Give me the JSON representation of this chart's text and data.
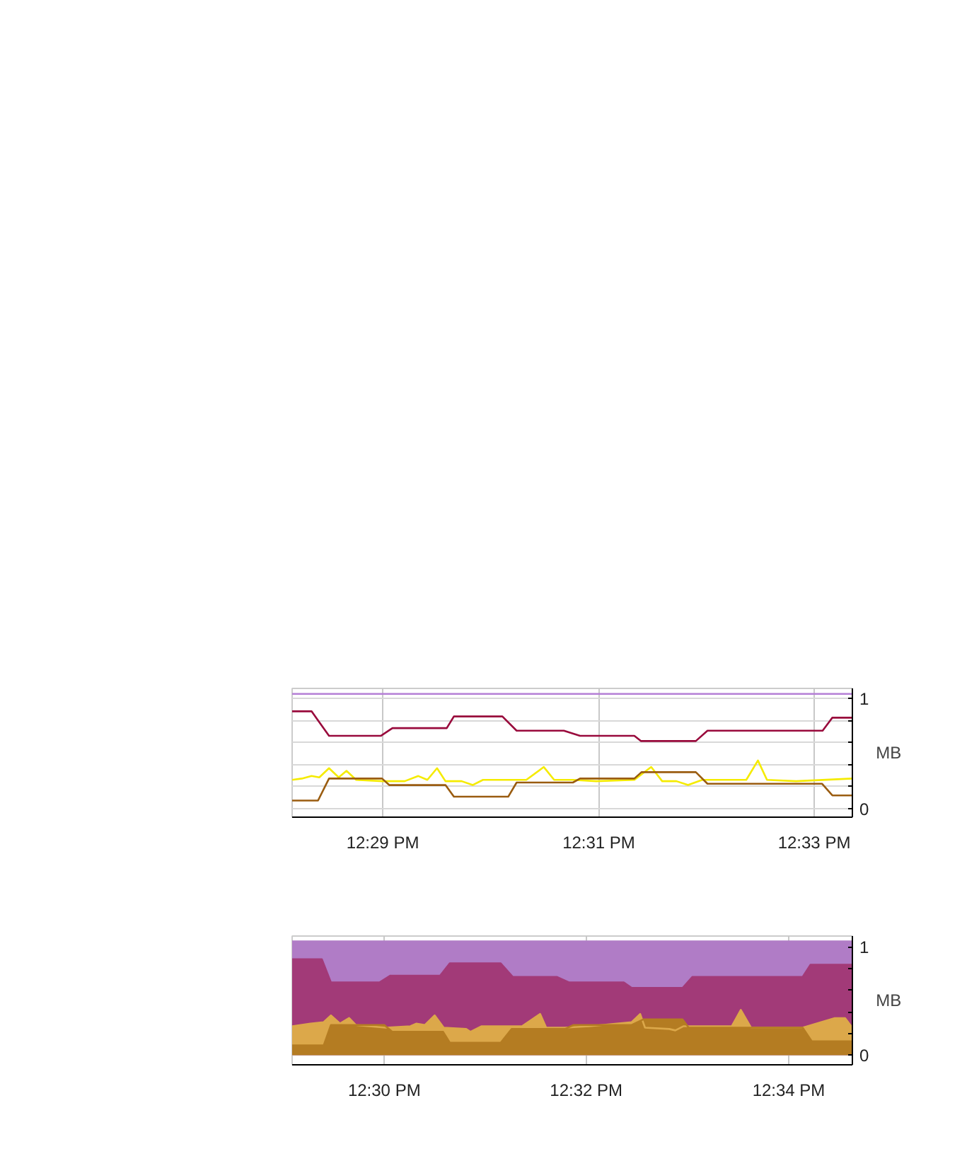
{
  "chart_data": [
    {
      "type": "line",
      "ylabel": "MB",
      "xlim": [
        12.4693,
        12.5559
      ],
      "ylim": [
        -0.08,
        1.09
      ],
      "xticks": [
        {
          "value": 12.4833,
          "label": "12:29 PM"
        },
        {
          "value": 12.5167,
          "label": "12:31 PM"
        },
        {
          "value": 12.55,
          "label": "12:33 PM"
        }
      ],
      "yticks": [
        0,
        {
          "value": 0.2,
          "label": null
        },
        {
          "value": 0.4,
          "label": null
        },
        {
          "value": 0.6,
          "label": null
        },
        {
          "value": 0.8,
          "label": null
        },
        1
      ],
      "grid": true,
      "line_style": "solid",
      "marker": "none",
      "series": [
        {
          "color": "#b57fd6",
          "x": [
            12.4693,
            12.5559
          ],
          "values": [
            1.04,
            1.04
          ]
        },
        {
          "color": "#990a3c",
          "x": [
            12.4693,
            12.4723,
            12.475,
            12.483,
            12.4848,
            12.4932,
            12.4943,
            12.5018,
            12.504,
            12.5113,
            12.5138,
            12.5222,
            12.5232,
            12.5317,
            12.5335,
            12.5513,
            12.5528,
            12.5559
          ],
          "values": [
            0.882,
            0.882,
            0.659,
            0.659,
            0.729,
            0.729,
            0.835,
            0.835,
            0.706,
            0.706,
            0.659,
            0.659,
            0.612,
            0.612,
            0.706,
            0.706,
            0.824,
            0.824
          ]
        },
        {
          "color": "#f5eb00",
          "x": [
            12.4693,
            12.4708,
            12.4723,
            12.4735,
            12.475,
            12.4765,
            12.4777,
            12.4792,
            12.4833,
            12.4867,
            12.4888,
            12.4902,
            12.4917,
            12.493,
            12.4955,
            12.4972,
            12.4988,
            12.5055,
            12.5082,
            12.5098,
            12.5127,
            12.5163,
            12.5222,
            12.5248,
            12.5265,
            12.5287,
            12.5305,
            12.5327,
            12.5395,
            12.5413,
            12.5427,
            12.5472,
            12.5559
          ],
          "values": [
            0.259,
            0.271,
            0.294,
            0.282,
            0.365,
            0.282,
            0.341,
            0.259,
            0.247,
            0.247,
            0.294,
            0.259,
            0.365,
            0.247,
            0.247,
            0.212,
            0.259,
            0.259,
            0.376,
            0.259,
            0.259,
            0.247,
            0.259,
            0.376,
            0.247,
            0.247,
            0.212,
            0.259,
            0.259,
            0.435,
            0.259,
            0.247,
            0.271
          ]
        },
        {
          "color": "#9a5c10",
          "x": [
            12.4693,
            12.4733,
            12.475,
            12.4832,
            12.4843,
            12.493,
            12.4943,
            12.5027,
            12.504,
            12.5127,
            12.5138,
            12.5222,
            12.5233,
            12.5317,
            12.5335,
            12.5512,
            12.5528,
            12.5559
          ],
          "values": [
            0.071,
            0.071,
            0.271,
            0.271,
            0.212,
            0.212,
            0.106,
            0.106,
            0.235,
            0.235,
            0.271,
            0.271,
            0.329,
            0.329,
            0.224,
            0.224,
            0.118,
            0.118
          ]
        }
      ]
    },
    {
      "type": "area",
      "ylabel": "MB",
      "xlim": [
        12.4848,
        12.5772
      ],
      "ylim": [
        -0.09,
        1.1
      ],
      "xticks": [
        {
          "value": 12.5,
          "label": "12:30 PM"
        },
        {
          "value": 12.5333,
          "label": "12:32 PM"
        },
        {
          "value": 12.5667,
          "label": "12:34 PM"
        }
      ],
      "yticks": [
        0,
        {
          "value": 0.2,
          "label": null
        },
        {
          "value": 0.4,
          "label": null
        },
        {
          "value": 0.6,
          "label": null
        },
        {
          "value": 0.8,
          "label": null
        },
        1
      ],
      "grid": true,
      "line_style": "solid",
      "marker": "none",
      "series": [
        {
          "color": "#b07cc6",
          "x": [
            12.4848,
            12.5772
          ],
          "values": [
            1.05,
            1.05
          ]
        },
        {
          "color": "#a23a78",
          "x": [
            12.4848,
            12.4897,
            12.4912,
            12.4992,
            12.501,
            12.5092,
            12.5108,
            12.5192,
            12.5212,
            12.5285,
            12.5305,
            12.5395,
            12.5408,
            12.5492,
            12.5508,
            12.569,
            12.5703,
            12.5772
          ],
          "values": [
            0.886,
            0.886,
            0.671,
            0.671,
            0.734,
            0.734,
            0.848,
            0.848,
            0.722,
            0.722,
            0.671,
            0.671,
            0.62,
            0.62,
            0.722,
            0.722,
            0.835,
            0.835
          ]
        },
        {
          "color": "#dca84a",
          "x": [
            12.4848,
            12.4878,
            12.49,
            12.4912,
            12.4927,
            12.4942,
            12.4953,
            12.5002,
            12.5043,
            12.5053,
            12.5067,
            12.5083,
            12.5098,
            12.5135,
            12.5142,
            12.516,
            12.5227,
            12.5257,
            12.5267,
            12.5298,
            12.5338,
            12.5408,
            12.5422,
            12.543,
            12.547,
            12.548,
            12.5493,
            12.5573,
            12.5588,
            12.5605,
            12.569,
            12.5743,
            12.576,
            12.5772
          ],
          "values": [
            0.266,
            0.291,
            0.304,
            0.367,
            0.291,
            0.342,
            0.278,
            0.253,
            0.266,
            0.291,
            0.278,
            0.367,
            0.253,
            0.241,
            0.215,
            0.266,
            0.266,
            0.38,
            0.253,
            0.253,
            0.266,
            0.304,
            0.38,
            0.253,
            0.241,
            0.228,
            0.266,
            0.266,
            0.418,
            0.253,
            0.253,
            0.342,
            0.342,
            0.253
          ]
        },
        {
          "color": "#b47c22",
          "x": [
            12.4848,
            12.49,
            12.4912,
            12.5,
            12.5013,
            12.5097,
            12.5108,
            12.5192,
            12.521,
            12.5298,
            12.5312,
            12.5408,
            12.5427,
            12.5492,
            12.5502,
            12.569,
            12.5705,
            12.5772
          ],
          "values": [
            0.089,
            0.089,
            0.278,
            0.278,
            0.215,
            0.215,
            0.114,
            0.114,
            0.241,
            0.241,
            0.278,
            0.278,
            0.329,
            0.329,
            0.253,
            0.253,
            0.127,
            0.127
          ]
        }
      ]
    }
  ]
}
